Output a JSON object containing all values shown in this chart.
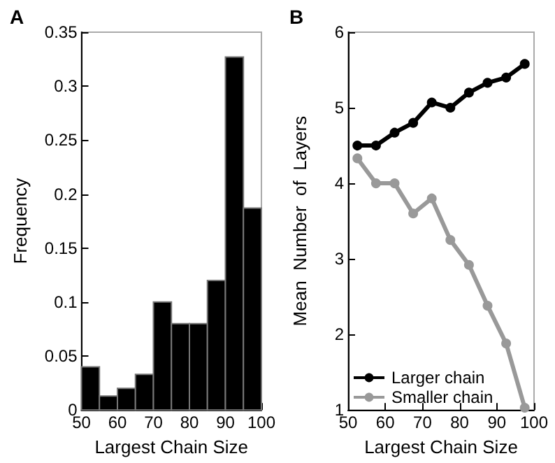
{
  "chart_data": [
    {
      "type": "histogram",
      "title": "A",
      "xlabel": "Largest Chain Size",
      "ylabel": "Frequency",
      "bins": [
        50,
        55,
        60,
        65,
        70,
        75,
        80,
        85,
        90,
        95,
        100
      ],
      "values": [
        0.04,
        0.013,
        0.02,
        0.033,
        0.1,
        0.08,
        0.08,
        0.12,
        0.327,
        0.187
      ],
      "color": "#000000",
      "xlim": [
        50,
        100
      ],
      "xticks": [
        50,
        60,
        70,
        80,
        90,
        100
      ],
      "ylim": [
        0,
        0.35
      ],
      "yticks": [
        0,
        0.05,
        0.1,
        0.15,
        0.2,
        0.25,
        0.3,
        0.35
      ],
      "grid": false
    },
    {
      "type": "line",
      "title": "B",
      "xlabel": "Largest Chain Size",
      "ylabel": "Mean  Number  of  Layers",
      "x": [
        52.5,
        57.5,
        62.5,
        67.5,
        72.5,
        77.5,
        82.5,
        87.5,
        92.5,
        97.5
      ],
      "series": [
        {
          "name": "Larger chain",
          "color": "#000000",
          "values": [
            4.5,
            4.5,
            4.67,
            4.8,
            5.07,
            5.0,
            5.2,
            5.33,
            5.4,
            5.58
          ]
        },
        {
          "name": "Smaller chain",
          "color": "#999999",
          "values": [
            4.33,
            4.0,
            4.0,
            3.6,
            3.8,
            3.25,
            2.92,
            2.38,
            1.88,
            1.03
          ]
        }
      ],
      "xlim": [
        50,
        100
      ],
      "xticks": [
        50,
        60,
        70,
        80,
        90,
        100
      ],
      "ylim": [
        1,
        6
      ],
      "yticks": [
        1,
        2,
        3,
        4,
        5,
        6
      ],
      "grid": false,
      "legend": "bottom left",
      "marker": "circle",
      "line_style": "solid"
    }
  ]
}
